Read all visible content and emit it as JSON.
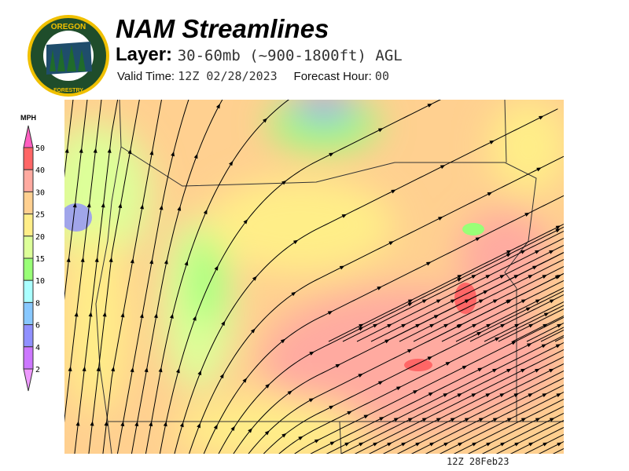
{
  "header": {
    "title": "NAM Streamlines",
    "layer_label": "Layer:",
    "layer_value": "30-60mb (~900-1800ft) AGL",
    "valid_label": "Valid Time:",
    "valid_value": "12Z 02/28/2023",
    "forecast_label": "Forecast Hour:",
    "forecast_value": "00"
  },
  "logo": {
    "text_top": "OREGON",
    "text_bottom": "DEPARTMENT OF FORESTRY",
    "colors": {
      "ring": "#1f4d2b",
      "border": "#f0c000"
    }
  },
  "colorbar": {
    "unit": "MPH",
    "ticks": [
      "50",
      "40",
      "30",
      "25",
      "20",
      "15",
      "10",
      "8",
      "6",
      "4",
      "2"
    ],
    "colors": [
      "#ff5ec0",
      "#ff6666",
      "#ffaaa0",
      "#ffd090",
      "#ffee88",
      "#ddff99",
      "#99ff77",
      "#aaffff",
      "#88c8ff",
      "#9090ff",
      "#cc77ff",
      "#ee99ff"
    ]
  },
  "map_stamp": "12Z 28Feb23"
}
